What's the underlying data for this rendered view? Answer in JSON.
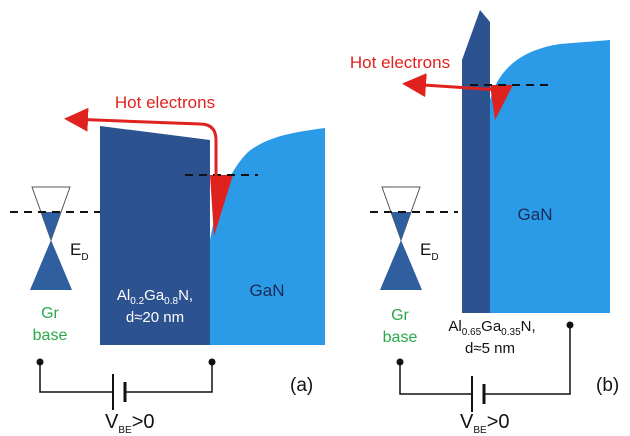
{
  "panels": [
    {
      "label": "(a)",
      "hot_electrons": "Hot electrons",
      "dirac_point": [
        "E",
        "D"
      ],
      "graphene": [
        "Gr",
        "base"
      ],
      "barrier": {
        "formula": [
          "Al",
          "0.2",
          "Ga",
          "0.8",
          "N,"
        ],
        "thickness": "d≈20 nm"
      },
      "collector": "GaN",
      "bias": [
        "V",
        "BE",
        ">0"
      ]
    },
    {
      "label": "(b)",
      "hot_electrons": "Hot electrons",
      "dirac_point": [
        "E",
        "D"
      ],
      "graphene": [
        "Gr",
        "base"
      ],
      "barrier": {
        "formula": [
          "Al",
          "0.65",
          "Ga",
          "0.35",
          "N,"
        ],
        "thickness": "d≈5 nm"
      },
      "collector": "GaN",
      "bias": [
        "V",
        "BE",
        ">0"
      ]
    }
  ]
}
